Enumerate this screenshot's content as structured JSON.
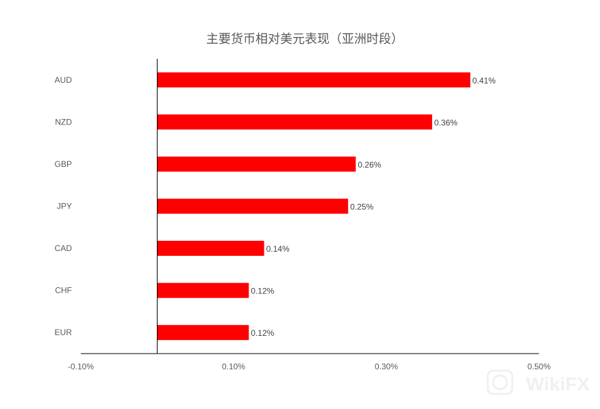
{
  "chart_data": {
    "type": "bar",
    "orientation": "horizontal",
    "title": "主要货币相对美元表现（亚洲时段）",
    "categories": [
      "AUD",
      "NZD",
      "GBP",
      "JPY",
      "CAD",
      "CHF",
      "EUR"
    ],
    "values": [
      0.41,
      0.36,
      0.26,
      0.25,
      0.14,
      0.12,
      0.12
    ],
    "data_labels": [
      "0.41%",
      "0.36%",
      "0.26%",
      "0.25%",
      "0.14%",
      "0.12%",
      "0.12%"
    ],
    "xlim": [
      -0.1,
      0.5
    ],
    "x_ticks": [
      -0.1,
      0.1,
      0.3,
      0.5
    ],
    "x_tick_labels": [
      "-0.10%",
      "0.10%",
      "0.30%",
      "0.50%"
    ],
    "grid": false,
    "bar_color": "#ff0000",
    "watermark": "WikiFX"
  }
}
